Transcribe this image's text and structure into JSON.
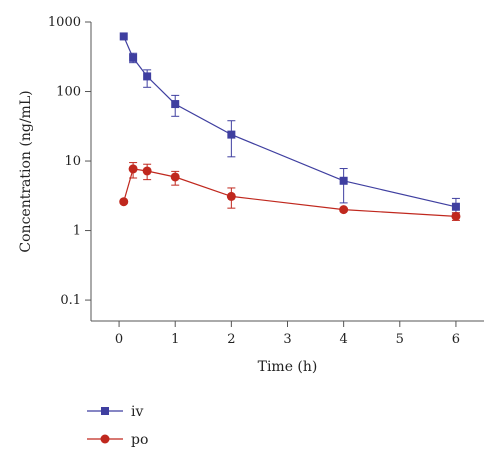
{
  "chart_data": {
    "type": "line",
    "xlabel": "Time (h)",
    "ylabel": "Concentration (ng/mL)",
    "xlim": [
      -0.5,
      6.5
    ],
    "ylim": [
      0.05,
      1000
    ],
    "yscale": "log",
    "xticks": [
      0,
      1,
      2,
      3,
      4,
      5,
      6
    ],
    "xtick_labels": [
      "0",
      "1",
      "2",
      "3",
      "4",
      "5",
      "6"
    ],
    "yticks": [
      0.1,
      1,
      10,
      100,
      1000
    ],
    "ytick_labels": [
      "0.1",
      "1",
      "10",
      "100",
      "1000"
    ],
    "grid": false,
    "legend_position": "bottom-left",
    "series": [
      {
        "name": "iv",
        "color": "#3f3fa0",
        "marker": "square",
        "x": [
          0.083,
          0.25,
          0.5,
          1,
          2,
          4,
          6
        ],
        "y": [
          620,
          305,
          165,
          66,
          24,
          5.2,
          2.2
        ],
        "err_low": [
          0,
          45,
          50,
          22,
          12.5,
          2.7,
          0.4
        ],
        "err_high": [
          0,
          50,
          40,
          22,
          14,
          2.6,
          0.7
        ]
      },
      {
        "name": "po",
        "color": "#c0281e",
        "marker": "circle",
        "x": [
          0.083,
          0.25,
          0.5,
          1,
          2,
          4,
          6
        ],
        "y": [
          2.6,
          7.7,
          7.2,
          5.9,
          3.1,
          2.0,
          1.6
        ],
        "err_low": [
          0,
          2.0,
          1.8,
          1.4,
          1.0,
          0,
          0.2
        ],
        "err_high": [
          0,
          1.8,
          1.8,
          1.2,
          1.0,
          0,
          0.2
        ]
      }
    ]
  }
}
